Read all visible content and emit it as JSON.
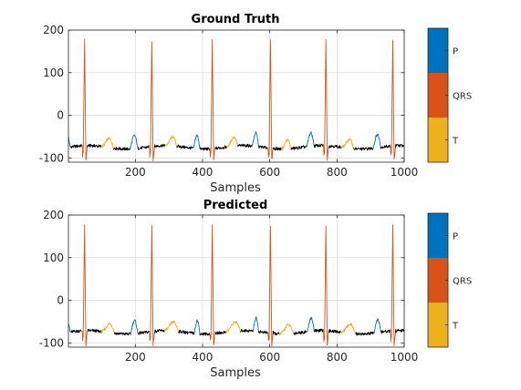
{
  "colors": {
    "P": "#0072BD",
    "QRS": "#D95319",
    "T": "#EDB120",
    "none": "#000000",
    "grid": "#dcdcdc",
    "axis": "#262626"
  },
  "chart_data": [
    {
      "type": "line",
      "title": "Ground Truth",
      "xlabel": "Samples",
      "ylabel": "",
      "xlim": [
        1,
        1000
      ],
      "ylim": [
        -110,
        200
      ],
      "xticks": [
        200,
        400,
        600,
        800,
        1000
      ],
      "yticks": [
        200,
        100,
        0,
        -100
      ],
      "grid": true,
      "beats": [
        {
          "qrs": 45,
          "p": [
            null,
            6
          ],
          "t": [
            100,
            135
          ]
        },
        {
          "qrs": 245,
          "p": [
            185,
            207
          ],
          "t": [
            290,
            323
          ]
        },
        {
          "qrs": 425,
          "p": [
            373,
            392
          ],
          "t": [
            473,
            505
          ]
        },
        {
          "qrs": 598,
          "p": [
            548,
            567
          ],
          "t": [
            635,
            663
          ]
        },
        {
          "qrs": 763,
          "p": [
            710,
            732
          ],
          "t": [
            815,
            850
          ]
        },
        {
          "qrs": 962,
          "p": [
            908,
            930
          ],
          "t": [
            null,
            null
          ]
        }
      ],
      "colorbar": {
        "labels": [
          "P",
          "QRS",
          "T"
        ],
        "order_top_to_bottom": [
          "P",
          "QRS",
          "T"
        ]
      }
    },
    {
      "type": "line",
      "title": "Predicted",
      "xlabel": "Samples",
      "ylabel": "",
      "xlim": [
        1,
        1000
      ],
      "ylim": [
        -110,
        200
      ],
      "xticks": [
        200,
        400,
        600,
        800,
        1000
      ],
      "yticks": [
        200,
        100,
        0,
        -100
      ],
      "grid": true,
      "beats": [
        {
          "qrs": 45,
          "p": [
            null,
            6
          ],
          "t": [
            100,
            138
          ]
        },
        {
          "qrs": 245,
          "p": [
            186,
            207
          ],
          "t": [
            288,
            328
          ]
        },
        {
          "qrs": 425,
          "p": [
            375,
            392
          ],
          "t": [
            470,
            512
          ]
        },
        {
          "qrs": 598,
          "p": [
            550,
            567
          ],
          "t": [
            630,
            670
          ]
        },
        {
          "qrs": 763,
          "p": [
            712,
            732
          ],
          "t": [
            812,
            855
          ]
        },
        {
          "qrs": 962,
          "p": [
            910,
            930
          ],
          "t": [
            null,
            null
          ]
        }
      ],
      "colorbar": {
        "labels": [
          "P",
          "QRS",
          "T"
        ],
        "order_top_to_bottom": [
          "P",
          "QRS",
          "T"
        ]
      }
    }
  ]
}
